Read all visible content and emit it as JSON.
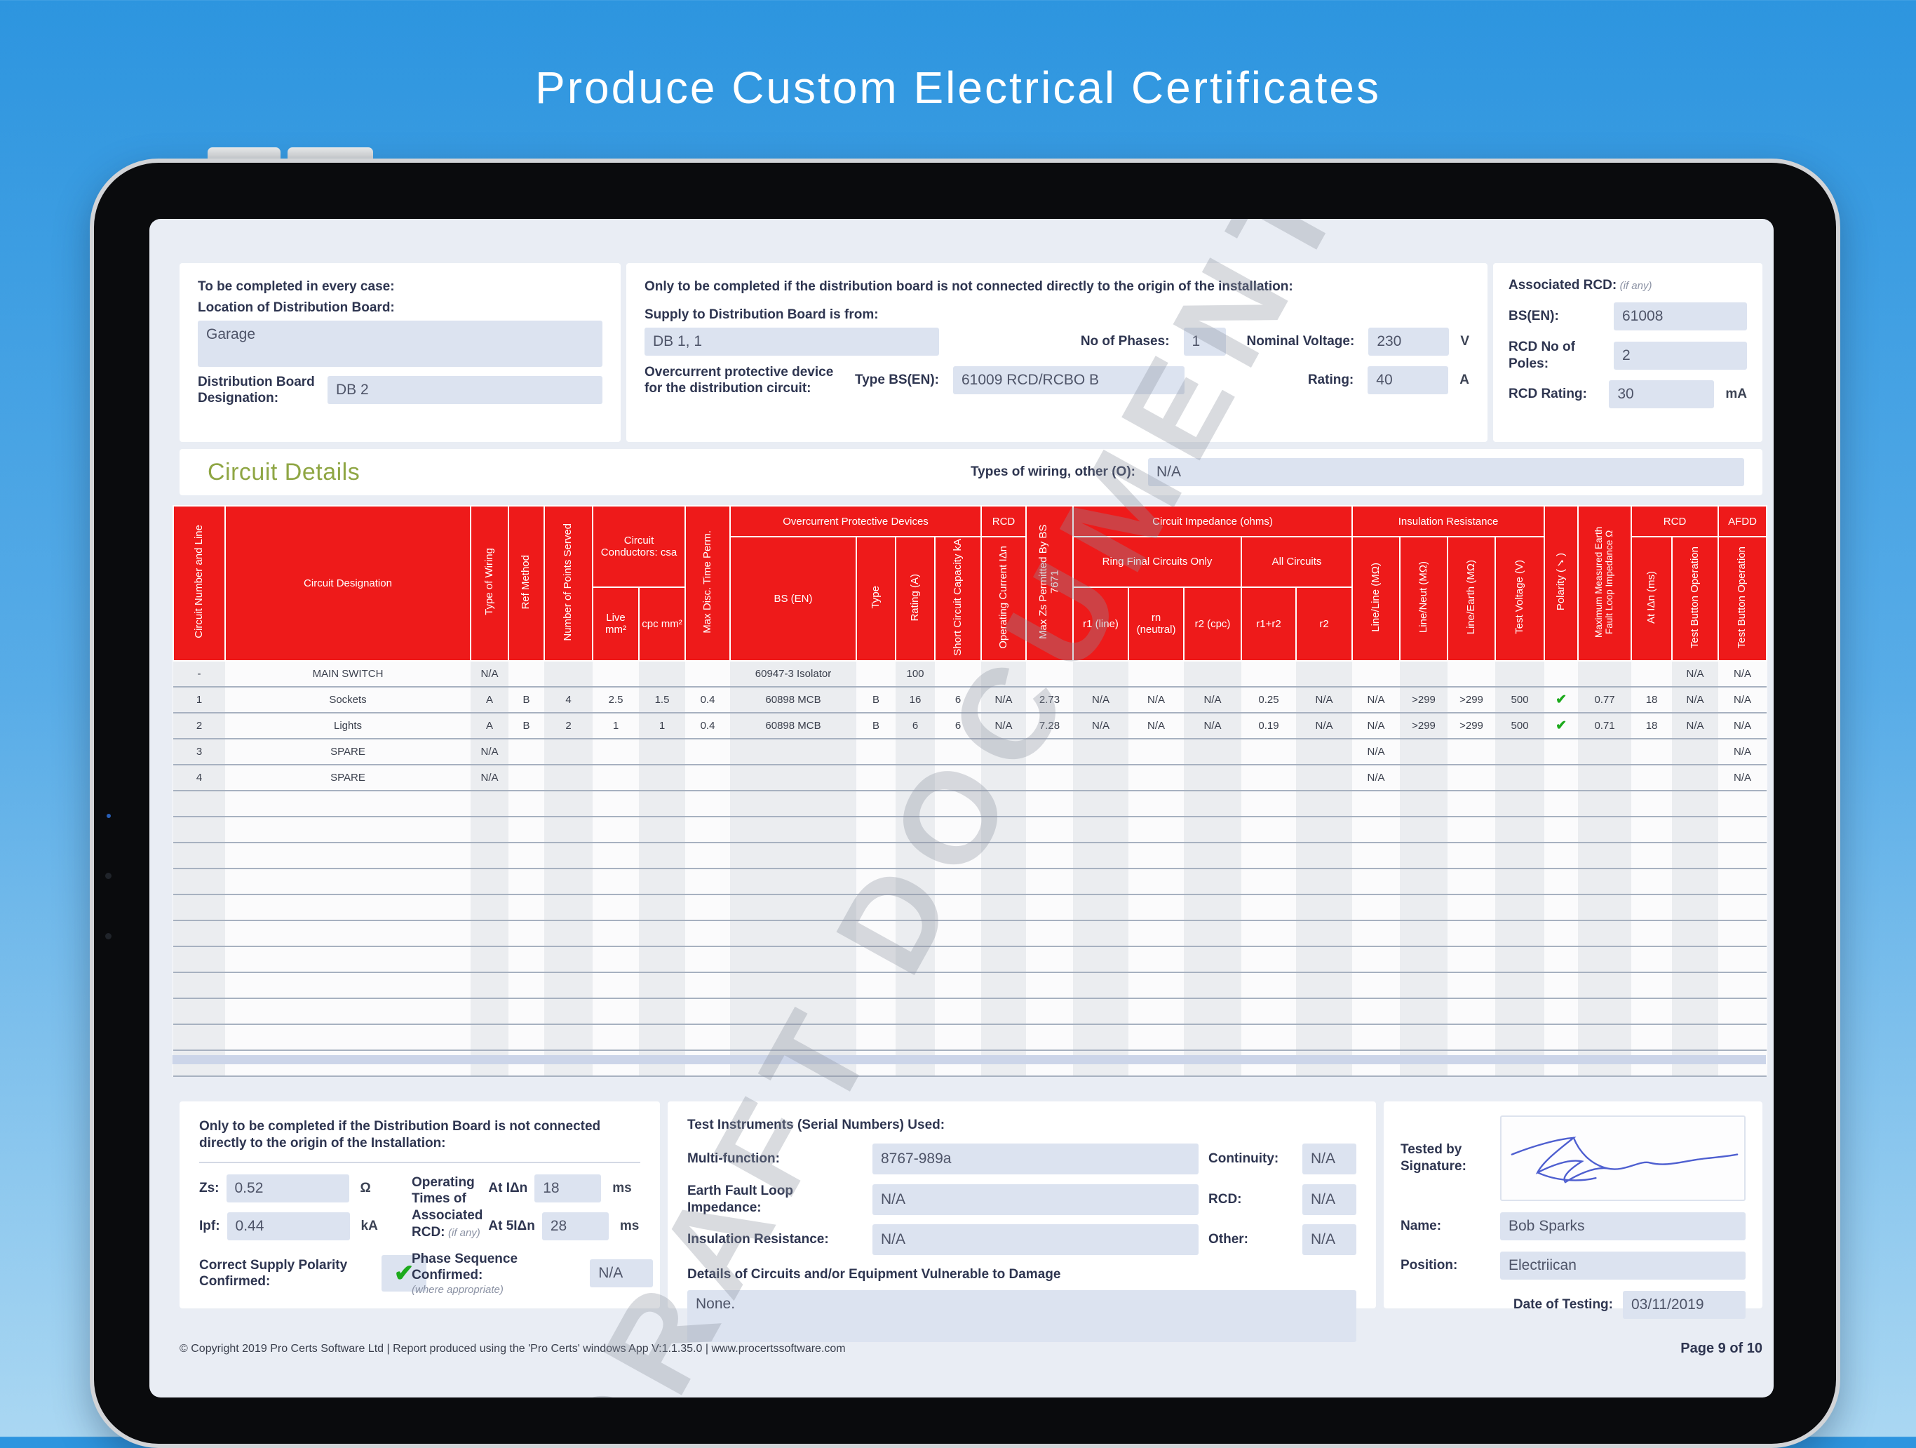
{
  "hero_title": "Produce Custom Electrical Certificates",
  "watermark": "DRAFT DOCUMENT",
  "colors": {
    "header_red": "#ee1a1a",
    "section_green": "#8fa644",
    "check_green": "#1daa1d",
    "field_bg": "#dce3f0",
    "background_blue_top": "#2d95df",
    "background_blue_bottom": "#aad7f2"
  },
  "form": {
    "left": {
      "heading": "To be completed in every case:",
      "location_label": "Location of Distribution Board:",
      "location_value": "Garage",
      "designation_label": "Distribution Board Designation:",
      "designation_value": "DB 2"
    },
    "middle": {
      "heading": "Only to be completed if the distribution board is not connected directly to the origin of the installation:",
      "supply_label": "Supply to Distribution Board is from:",
      "supply_value": "DB 1, 1",
      "phases_label": "No of Phases:",
      "phases_value": "1",
      "voltage_label": "Nominal Voltage:",
      "voltage_value": "230",
      "voltage_unit": "V",
      "ocpd_label": "Overcurrent protective device for the distribution circuit:",
      "type_bsen_label": "Type BS(EN):",
      "type_bsen_value": "61009 RCD/RCBO B",
      "rating_label": "Rating:",
      "rating_value": "40",
      "rating_unit": "A"
    },
    "right": {
      "heading": "Associated RCD:",
      "heading_note": "(if any)",
      "bsen_label": "BS(EN):",
      "bsen_value": "61008",
      "poles_label": "RCD No of Poles:",
      "poles_value": "2",
      "rcd_rating_label": "RCD Rating:",
      "rcd_rating_value": "30",
      "rcd_rating_unit": "mA"
    }
  },
  "circuit_details": {
    "heading": "Circuit Details",
    "wiring_other_label": "Types of wiring, other (O):",
    "wiring_other_value": "N/A"
  },
  "table": {
    "h": {
      "circuit_number": "Circuit Number and Line",
      "designation": "Circuit Designation",
      "type_of_wiring": "Type of Wiring",
      "ref_method": "Ref Method",
      "points_served": "Number of Points Served",
      "conductors_group": "Circuit Conductors: csa",
      "live": "Live mm²",
      "cpc": "cpc mm²",
      "max_disc": "Max Disc. Time Perm.",
      "opd_group": "Overcurrent Protective Devices",
      "bs_en": "BS (EN)",
      "type": "Type",
      "rating": "Rating (A)",
      "scc": "Short Circuit Capacity kA",
      "rcd_group": "RCD",
      "op_current": "Operating Current IΔn",
      "max_zs": "Max Zs Permitted By BS 7671",
      "impedance_group": "Circuit Impedance (ohms)",
      "ring_group": "Ring Final Circuits Only",
      "all_circuits_group": "All Circuits",
      "r1_line": "r1 (line)",
      "rn_neutral": "rn (neutral)",
      "r2_cpc": "r2 (cpc)",
      "r1r2": "r1+r2",
      "r2": "r2",
      "ir_group": "Insulation Resistance",
      "line_line": "Line/Line (MΩ)",
      "line_neut": "Line/Neut (MΩ)",
      "line_earth": "Line/Earth (MΩ)",
      "test_voltage": "Test Voltage (V)",
      "polarity": "Polarity (✓)",
      "max_efli": "Maximum Measured Earth Fault Loop Impedance Ω",
      "rcd_group2": "RCD",
      "at_idn": "At IΔn (ms)",
      "test_button": "Test Button Operation",
      "afdd_group": "AFDD",
      "test_button2": "Test Button Operation"
    },
    "rows": [
      [
        "-",
        "MAIN SWITCH",
        "N/A",
        "",
        "",
        "",
        "",
        "",
        "60947-3 Isolator",
        "",
        "100",
        "",
        "",
        "",
        "",
        "",
        "",
        "",
        "",
        "",
        "",
        "",
        "",
        "",
        "",
        "",
        "N/A",
        "N/A"
      ],
      [
        "1",
        "Sockets",
        "A",
        "B",
        "4",
        "2.5",
        "1.5",
        "0.4",
        "60898 MCB",
        "B",
        "16",
        "6",
        "N/A",
        "2.73",
        "N/A",
        "N/A",
        "N/A",
        "0.25",
        "N/A",
        "N/A",
        ">299",
        ">299",
        "500",
        "✓",
        "0.77",
        "18",
        "N/A",
        "N/A"
      ],
      [
        "2",
        "Lights",
        "A",
        "B",
        "2",
        "1",
        "1",
        "0.4",
        "60898 MCB",
        "B",
        "6",
        "6",
        "N/A",
        "7.28",
        "N/A",
        "N/A",
        "N/A",
        "0.19",
        "N/A",
        "N/A",
        ">299",
        ">299",
        "500",
        "✓",
        "0.71",
        "18",
        "N/A",
        "N/A"
      ],
      [
        "3",
        "SPARE",
        "N/A",
        "",
        "",
        "",
        "",
        "",
        "",
        "",
        "",
        "",
        "",
        "",
        "",
        "",
        "",
        "",
        "",
        "N/A",
        "",
        "",
        "",
        "",
        "",
        "",
        "",
        "N/A"
      ],
      [
        "4",
        "SPARE",
        "N/A",
        "",
        "",
        "",
        "",
        "",
        "",
        "",
        "",
        "",
        "",
        "",
        "",
        "",
        "",
        "",
        "",
        "N/A",
        "",
        "",
        "",
        "",
        "",
        "",
        "",
        "N/A"
      ]
    ],
    "empty_rows": 11
  },
  "bottom_left": {
    "heading": "Only to be completed if the Distribution Board is not connected directly to the origin of the Installation:",
    "zs_label": "Zs:",
    "zs_value": "0.52",
    "zs_unit": "Ω",
    "ipf_label": "Ipf:",
    "ipf_value": "0.44",
    "ipf_unit": "kA",
    "op_times_label": "Operating Times of Associated RCD:",
    "op_times_note": "(if any)",
    "at_idn_label": "At IΔn",
    "at_idn_value": "18",
    "at_idn_unit": "ms",
    "at_5idn_label": "At 5IΔn",
    "at_5idn_value": "28",
    "at_5idn_unit": "ms",
    "polarity_label": "Correct Supply Polarity Confirmed:",
    "polarity_value": "✔",
    "phase_seq_label": "Phase Sequence Confirmed:",
    "phase_seq_note": "(where appropriate)",
    "phase_seq_value": "N/A"
  },
  "instruments": {
    "heading": "Test Instruments (Serial Numbers) Used:",
    "multi_label": "Multi-function:",
    "multi_value": "8767-989a",
    "continuity_label": "Continuity:",
    "continuity_value": "N/A",
    "efli_label": "Earth Fault Loop Impedance:",
    "efli_value": "N/A",
    "rcd_label": "RCD:",
    "rcd_value": "N/A",
    "ir_label": "Insulation Resistance:",
    "ir_value": "N/A",
    "other_label": "Other:",
    "other_value": "N/A",
    "vulnerable_label": "Details of Circuits and/or Equipment Vulnerable to Damage",
    "vulnerable_value": "None."
  },
  "tested_by": {
    "signature_label": "Tested by Signature:",
    "name_label": "Name:",
    "name_value": "Bob Sparks",
    "position_label": "Position:",
    "position_value": "Electriican",
    "date_label": "Date of Testing:",
    "date_value": "03/11/2019"
  },
  "footer": {
    "copyright": "© Copyright 2019 Pro Certs Software Ltd | Report produced using the 'Pro Certs' windows App V:1.1.35.0 | www.procertssoftware.com",
    "page": "Page 9 of 10"
  }
}
